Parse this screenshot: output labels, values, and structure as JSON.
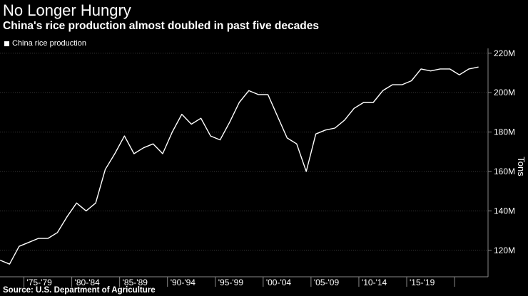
{
  "header": {
    "title": "No Longer Hungry",
    "subtitle": "China's rice production almost doubled in past five decades"
  },
  "footer": {
    "source": "Source: U.S. Department of Agriculture"
  },
  "chart_data": {
    "type": "line",
    "title": "No Longer Hungry",
    "subtitle": "China's rice production almost doubled in past five decades",
    "ylabel": "Tons",
    "xlabel": "",
    "ylim": [
      108,
      221
    ],
    "xlim": [
      1972,
      2023
    ],
    "legend": [
      "China rice production"
    ],
    "legend_position": "top-left",
    "y_ticks": [
      120,
      140,
      160,
      180,
      200,
      220
    ],
    "y_tick_labels": [
      "120M",
      "140M",
      "160M",
      "180M",
      "200M",
      "220M"
    ],
    "x_tick_labels": [
      "'75-'79",
      "'80-'84",
      "'85-'89",
      "'90-'94",
      "'95-'99",
      "'00-'04",
      "'05-'09",
      "'10-'14",
      "'15-'19"
    ],
    "x_tick_starts": [
      1975,
      1980,
      1985,
      1990,
      1995,
      2000,
      2005,
      2010,
      2015
    ],
    "x_tick_ends": [
      1979,
      1984,
      1989,
      1994,
      1999,
      2004,
      2009,
      2014,
      2019
    ],
    "x_boundaries": [
      1974.5,
      1979.5,
      1984.5,
      1989.5,
      1994.5,
      1999.5,
      2004.5,
      2009.5,
      2014.5,
      2019.5
    ],
    "series": [
      {
        "name": "China rice production",
        "color": "#ffffff",
        "x": [
          1972,
          1973,
          1974,
          1975,
          1976,
          1977,
          1978,
          1979,
          1980,
          1981,
          1982,
          1983,
          1984,
          1985,
          1986,
          1987,
          1988,
          1989,
          1990,
          1991,
          1992,
          1993,
          1994,
          1995,
          1996,
          1997,
          1998,
          1999,
          2000,
          2001,
          2002,
          2003,
          2004,
          2005,
          2006,
          2007,
          2008,
          2009,
          2010,
          2011,
          2012,
          2013,
          2014,
          2015,
          2016,
          2017,
          2018,
          2019,
          2020,
          2021,
          2022
        ],
        "values": [
          115,
          113,
          122,
          124,
          126,
          126,
          129,
          137,
          144,
          140,
          144,
          161,
          169,
          178,
          169,
          172,
          174,
          169,
          180,
          189,
          184,
          187,
          178,
          176,
          185,
          195,
          201,
          199,
          199,
          188,
          177,
          174,
          160,
          179,
          181,
          182,
          186,
          192,
          195,
          195,
          201,
          204,
          204,
          206,
          212,
          211,
          212,
          212,
          209,
          212,
          213
        ]
      }
    ]
  }
}
